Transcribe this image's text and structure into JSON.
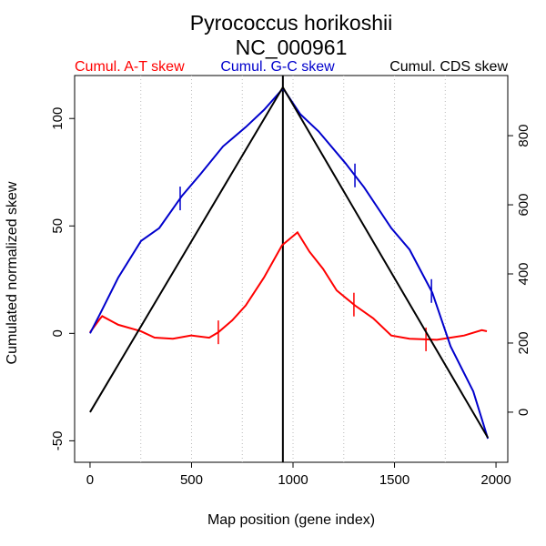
{
  "chart_data": {
    "type": "line",
    "title": "Pyrococcus horikoshii",
    "subtitle": "NC_000961",
    "x_label": "Map position (gene index)",
    "y_label": "Cumulated normalized skew",
    "xlim": [
      -76,
      2058
    ],
    "xticks": [
      0,
      500,
      1000,
      1500,
      2000
    ],
    "ylim": [
      -60,
      120
    ],
    "yticks": [
      -50,
      0,
      50,
      100
    ],
    "y2lim": [
      -145,
      974
    ],
    "y2ticks": [
      0,
      200,
      400,
      600,
      800
    ],
    "xgrid": [
      250,
      500,
      750,
      1000,
      1250,
      1500,
      1750
    ],
    "vline": 950,
    "series": [
      {
        "name": "Cumul. A-T skew",
        "color": "#ff0000",
        "x": [
          0,
          49,
          60,
          139,
          250,
          318,
          408,
          498,
          587,
          632,
          700,
          767,
          857,
          946,
          1022,
          1081,
          1148,
          1215,
          1305,
          1395,
          1484,
          1574,
          1709,
          1843,
          1930,
          1955
        ],
        "values": [
          0.5,
          6.8,
          8,
          4,
          1,
          -2,
          -2.5,
          -1,
          -2,
          0.5,
          6,
          13,
          26,
          41,
          47,
          38,
          30,
          20,
          13,
          7,
          -1,
          -2.5,
          -3,
          -1,
          1.5,
          1
        ],
        "marker_x": [
          632,
          1300,
          1655
        ]
      },
      {
        "name": "Cumul. G-C skew",
        "color": "#0000cc",
        "x": [
          0,
          49,
          139,
          251,
          341,
          453,
          543,
          655,
          767,
          857,
          951,
          1036,
          1126,
          1260,
          1350,
          1484,
          1574,
          1686,
          1776,
          1888,
          1960
        ],
        "values": [
          0,
          9,
          26,
          43,
          49,
          64,
          74,
          87,
          96,
          104,
          114,
          102,
          94,
          79,
          68,
          49,
          39,
          19,
          -6,
          -27,
          -49
        ],
        "marker_x": [
          444,
          1305,
          1682
        ]
      },
      {
        "name": "Cumul. CDS skew",
        "color": "#000000",
        "axis": "y2",
        "x": [
          0,
          950,
          1960
        ],
        "values": [
          0,
          940,
          -74
        ]
      }
    ]
  }
}
